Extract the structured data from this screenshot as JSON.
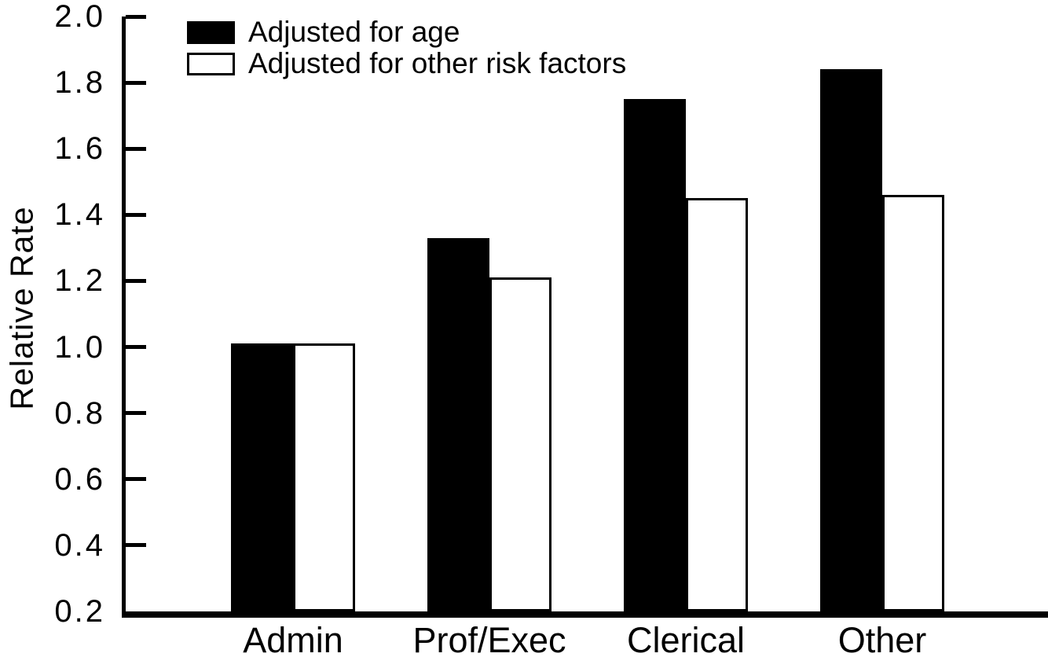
{
  "chart_data": {
    "type": "bar",
    "title": "",
    "ylabel": "Relative Rate",
    "xlabel": "",
    "categories": [
      "Admin",
      "Prof/Exec",
      "Clerical",
      "Other"
    ],
    "series": [
      {
        "name": "Adjusted for age",
        "fill": "#000000",
        "outline": "#000000",
        "values": [
          1.01,
          1.33,
          1.75,
          1.84
        ]
      },
      {
        "name": "Adjusted for other risk factors",
        "fill": "#ffffff",
        "outline": "#000000",
        "values": [
          1.01,
          1.21,
          1.45,
          1.46
        ]
      }
    ],
    "ylim": [
      0.2,
      2.0
    ],
    "ytick_step": 0.2,
    "yticks": [
      "0.2",
      "0.4",
      "0.6",
      "0.8",
      "1.0",
      "1.2",
      "1.4",
      "1.6",
      "1.8",
      "2.0"
    ],
    "grid": false,
    "legend_position": "top-left",
    "axis_color": "#000000",
    "background": "#ffffff"
  }
}
